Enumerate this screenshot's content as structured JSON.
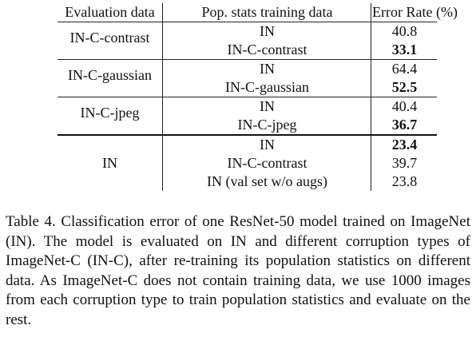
{
  "table": {
    "headers": [
      "Evaluation data",
      "Pop. stats training data",
      "Error Rate (%)"
    ],
    "groups": [
      {
        "eval": "IN-C-contrast",
        "rows": [
          {
            "train": "IN",
            "error": "40.8",
            "bold": false
          },
          {
            "train": "IN-C-contrast",
            "error": "33.1",
            "bold": true
          }
        ]
      },
      {
        "eval": "IN-C-gaussian",
        "rows": [
          {
            "train": "IN",
            "error": "64.4",
            "bold": false
          },
          {
            "train": "IN-C-gaussian",
            "error": "52.5",
            "bold": true
          }
        ]
      },
      {
        "eval": "IN-C-jpeg",
        "rows": [
          {
            "train": "IN",
            "error": "40.4",
            "bold": false
          },
          {
            "train": "IN-C-jpeg",
            "error": "36.7",
            "bold": true
          }
        ]
      },
      {
        "eval": "IN",
        "rows": [
          {
            "train": "IN",
            "error": "23.4",
            "bold": true
          },
          {
            "train": "IN-C-contrast",
            "error": "39.7",
            "bold": false
          },
          {
            "train": "IN (val set w/o augs)",
            "error": "23.8",
            "bold": false
          }
        ]
      }
    ]
  },
  "caption": "Table 4. Classification error of one ResNet-50 model trained on ImageNet (IN). The model is evaluated on IN and different corruption types of ImageNet-C (IN-C), after re-training its population statistics on different data. As ImageNet-C does not contain training data, we use 1000 images from each corruption type to train population statistics and evaluate on the rest."
}
